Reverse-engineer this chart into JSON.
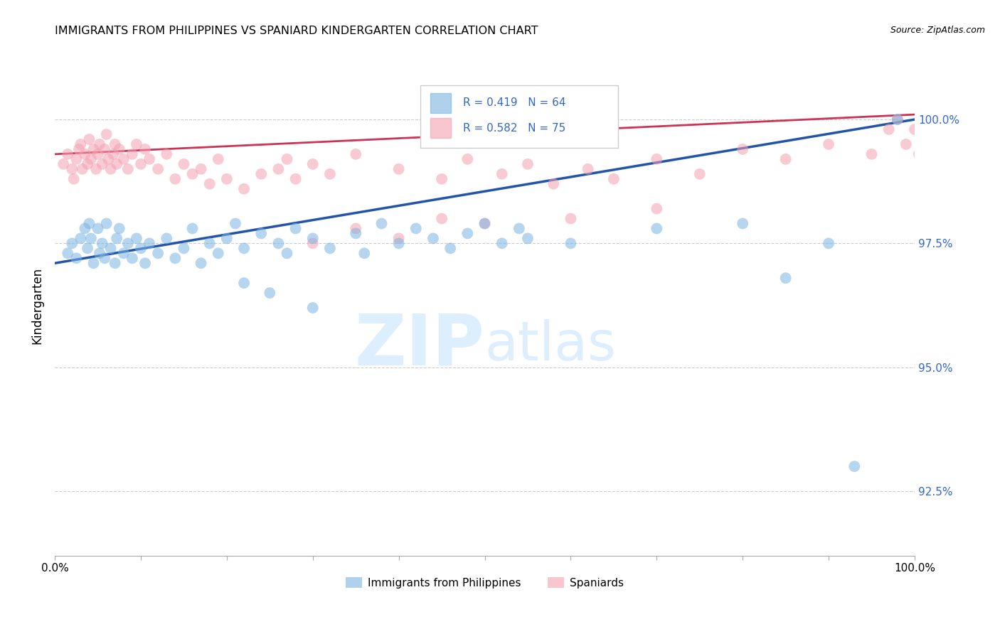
{
  "title": "IMMIGRANTS FROM PHILIPPINES VS SPANIARD KINDERGARTEN CORRELATION CHART",
  "source": "Source: ZipAtlas.com",
  "ylabel": "Kindergarten",
  "ytick_values": [
    92.5,
    95.0,
    97.5,
    100.0
  ],
  "ymin": 91.2,
  "ymax": 101.3,
  "xmin": 0.0,
  "xmax": 100.0,
  "legend_blue_r": "R = 0.419",
  "legend_blue_n": "N = 64",
  "legend_pink_r": "R = 0.582",
  "legend_pink_n": "N = 75",
  "legend_blue_label": "Immigrants from Philippines",
  "legend_pink_label": "Spaniards",
  "blue_color": "#7ab3e0",
  "pink_color": "#f4a0b0",
  "blue_line_color": "#2255aa",
  "pink_line_color": "#cc3355",
  "watermark_zip": "ZIP",
  "watermark_atlas": "atlas",
  "watermark_color": "#ddeeff",
  "blue_x": [
    1.5,
    2.0,
    2.5,
    3.0,
    3.5,
    3.8,
    4.0,
    4.2,
    4.5,
    5.0,
    5.2,
    5.5,
    5.8,
    6.0,
    6.5,
    7.0,
    7.2,
    7.5,
    8.0,
    8.5,
    9.0,
    9.5,
    10.0,
    10.5,
    11.0,
    12.0,
    13.0,
    14.0,
    15.0,
    16.0,
    17.0,
    18.0,
    19.0,
    20.0,
    21.0,
    22.0,
    24.0,
    26.0,
    27.0,
    28.0,
    30.0,
    32.0,
    35.0,
    36.0,
    38.0,
    40.0,
    42.0,
    44.0,
    46.0,
    48.0,
    50.0,
    52.0,
    54.0,
    55.0,
    22.0,
    25.0,
    30.0,
    60.0,
    70.0,
    80.0,
    85.0,
    90.0,
    93.0,
    98.0
  ],
  "blue_y": [
    97.3,
    97.5,
    97.2,
    97.6,
    97.8,
    97.4,
    97.9,
    97.6,
    97.1,
    97.8,
    97.3,
    97.5,
    97.2,
    97.9,
    97.4,
    97.1,
    97.6,
    97.8,
    97.3,
    97.5,
    97.2,
    97.6,
    97.4,
    97.1,
    97.5,
    97.3,
    97.6,
    97.2,
    97.4,
    97.8,
    97.1,
    97.5,
    97.3,
    97.6,
    97.9,
    97.4,
    97.7,
    97.5,
    97.3,
    97.8,
    97.6,
    97.4,
    97.7,
    97.3,
    97.9,
    97.5,
    97.8,
    97.6,
    97.4,
    97.7,
    97.9,
    97.5,
    97.8,
    97.6,
    96.7,
    96.5,
    96.2,
    97.5,
    97.8,
    97.9,
    96.8,
    97.5,
    93.0,
    100.0
  ],
  "pink_x": [
    1.0,
    1.5,
    2.0,
    2.2,
    2.5,
    2.8,
    3.0,
    3.2,
    3.5,
    3.8,
    4.0,
    4.2,
    4.5,
    4.8,
    5.0,
    5.2,
    5.5,
    5.8,
    6.0,
    6.2,
    6.5,
    6.8,
    7.0,
    7.2,
    7.5,
    8.0,
    8.5,
    9.0,
    9.5,
    10.0,
    10.5,
    11.0,
    12.0,
    13.0,
    14.0,
    15.0,
    16.0,
    17.0,
    18.0,
    19.0,
    20.0,
    22.0,
    24.0,
    26.0,
    27.0,
    28.0,
    30.0,
    32.0,
    35.0,
    40.0,
    45.0,
    48.0,
    52.0,
    55.0,
    58.0,
    62.0,
    65.0,
    70.0,
    75.0,
    80.0,
    85.0,
    90.0,
    95.0,
    97.0,
    98.0,
    99.0,
    100.0,
    100.5,
    30.0,
    35.0,
    40.0,
    45.0,
    50.0,
    60.0,
    70.0
  ],
  "pink_y": [
    99.1,
    99.3,
    99.0,
    98.8,
    99.2,
    99.4,
    99.5,
    99.0,
    99.3,
    99.1,
    99.6,
    99.2,
    99.4,
    99.0,
    99.3,
    99.5,
    99.1,
    99.4,
    99.7,
    99.2,
    99.0,
    99.3,
    99.5,
    99.1,
    99.4,
    99.2,
    99.0,
    99.3,
    99.5,
    99.1,
    99.4,
    99.2,
    99.0,
    99.3,
    98.8,
    99.1,
    98.9,
    99.0,
    98.7,
    99.2,
    98.8,
    98.6,
    98.9,
    99.0,
    99.2,
    98.8,
    99.1,
    98.9,
    99.3,
    99.0,
    98.8,
    99.2,
    98.9,
    99.1,
    98.7,
    99.0,
    98.8,
    99.2,
    98.9,
    99.4,
    99.2,
    99.5,
    99.3,
    99.8,
    100.0,
    99.5,
    99.8,
    99.3,
    97.5,
    97.8,
    97.6,
    98.0,
    97.9,
    98.0,
    98.2
  ]
}
